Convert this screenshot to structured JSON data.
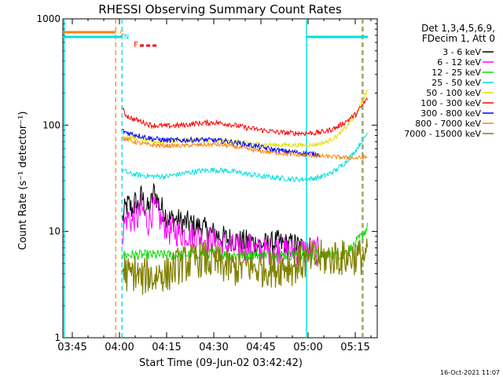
{
  "chart_data": {
    "type": "line",
    "title": "RHESSI Observing Summary Count Rates",
    "xlabel": "Start Time (09-Jun-02 03:42:42)",
    "ylabel": "Count Rate (s⁻¹ detector⁻¹)",
    "footer": "16-Oct-2021 11:07",
    "y_scale": "log",
    "ylim": [
      1,
      1000
    ],
    "xlim_minutes": [
      -18,
      82
    ],
    "x_tick_labels": [
      "03:45",
      "04:00",
      "04:15",
      "04:30",
      "04:45",
      "05:00",
      "05:15"
    ],
    "x_tick_minutes": [
      -15,
      0,
      15,
      30,
      45,
      60,
      75
    ],
    "y_tick_labels": [
      "1",
      "10",
      "100",
      "1000"
    ],
    "y_tick_values": [
      1,
      10,
      100,
      1000
    ],
    "legend": {
      "placement": "top-right",
      "header_lines": [
        "Det 1,3,4,5,6,9,",
        "FDecim 1, Att 0"
      ]
    },
    "flags": {
      "markers": [
        "S",
        "N",
        "F"
      ],
      "colors": [
        "#ff8000",
        "#00e0e0",
        "#ff0000"
      ]
    },
    "series": [
      {
        "name": "3 - 6 keV",
        "color": "#000000",
        "points": [
          [
            1,
            13
          ],
          [
            2,
            17
          ],
          [
            3,
            18
          ],
          [
            4,
            16
          ],
          [
            5,
            19
          ],
          [
            6,
            17
          ],
          [
            7,
            22
          ],
          [
            8,
            18
          ],
          [
            9,
            16
          ],
          [
            10,
            18
          ],
          [
            11,
            24
          ],
          [
            12,
            20
          ],
          [
            13,
            17
          ],
          [
            14,
            16
          ],
          [
            15,
            14
          ],
          [
            16,
            13
          ],
          [
            18,
            13
          ],
          [
            20,
            12
          ],
          [
            22,
            12
          ],
          [
            24,
            11
          ],
          [
            26,
            11
          ],
          [
            28,
            10
          ],
          [
            30,
            9.5
          ],
          [
            32,
            9
          ],
          [
            34,
            8.5
          ],
          [
            36,
            8.5
          ],
          [
            38,
            8
          ],
          [
            40,
            8
          ],
          [
            42,
            8
          ],
          [
            44,
            7.5
          ],
          [
            46,
            7.5
          ],
          [
            48,
            7.5
          ],
          [
            50,
            8
          ],
          [
            52,
            7.5
          ],
          [
            54,
            7.5
          ],
          [
            56,
            7.5
          ],
          [
            58,
            7
          ],
          [
            60,
            7
          ],
          [
            61,
            7
          ]
        ]
      },
      {
        "name": "6 - 12 keV",
        "color": "#ff00ff",
        "points": [
          [
            1,
            10
          ],
          [
            2,
            13
          ],
          [
            3,
            14
          ],
          [
            4,
            12
          ],
          [
            5,
            14
          ],
          [
            6,
            13
          ],
          [
            7,
            17
          ],
          [
            8,
            14
          ],
          [
            9,
            12
          ],
          [
            10,
            14
          ],
          [
            11,
            17
          ],
          [
            12,
            15
          ],
          [
            13,
            13
          ],
          [
            14,
            12
          ],
          [
            15,
            11
          ],
          [
            16,
            10
          ],
          [
            18,
            10
          ],
          [
            20,
            9.5
          ],
          [
            22,
            9.5
          ],
          [
            24,
            9
          ],
          [
            26,
            9
          ],
          [
            28,
            8.5
          ],
          [
            30,
            8
          ],
          [
            32,
            7.5
          ],
          [
            34,
            7.5
          ],
          [
            36,
            7
          ],
          [
            38,
            7
          ],
          [
            40,
            7
          ],
          [
            42,
            7
          ],
          [
            44,
            6.5
          ],
          [
            46,
            6.5
          ],
          [
            48,
            6.5
          ],
          [
            50,
            7
          ],
          [
            52,
            6.5
          ],
          [
            54,
            6.5
          ],
          [
            56,
            6.5
          ],
          [
            58,
            6.5
          ],
          [
            60,
            6.5
          ],
          [
            62,
            6.5
          ],
          [
            64,
            6.5
          ]
        ]
      },
      {
        "name": "12 - 25 keV",
        "color": "#00e000",
        "points": [
          [
            1,
            6
          ],
          [
            5,
            6
          ],
          [
            10,
            6
          ],
          [
            15,
            6
          ],
          [
            20,
            6
          ],
          [
            25,
            6.2
          ],
          [
            30,
            6.2
          ],
          [
            35,
            6
          ],
          [
            40,
            6
          ],
          [
            45,
            6
          ],
          [
            50,
            6
          ],
          [
            55,
            6
          ],
          [
            60,
            6
          ],
          [
            65,
            6
          ],
          [
            70,
            6
          ],
          [
            74,
            7
          ],
          [
            77,
            9
          ],
          [
            79,
            11
          ]
        ]
      },
      {
        "name": "25 - 50 keV",
        "color": "#00e0e0",
        "points": [
          [
            1,
            38
          ],
          [
            3,
            35
          ],
          [
            6,
            34
          ],
          [
            10,
            33
          ],
          [
            15,
            33
          ],
          [
            20,
            35
          ],
          [
            25,
            37
          ],
          [
            30,
            38
          ],
          [
            35,
            37
          ],
          [
            40,
            35
          ],
          [
            45,
            33
          ],
          [
            50,
            32
          ],
          [
            55,
            31
          ],
          [
            60,
            31
          ],
          [
            63,
            32
          ],
          [
            66,
            34
          ],
          [
            69,
            38
          ],
          [
            72,
            45
          ],
          [
            75,
            57
          ],
          [
            77,
            70
          ],
          [
            79,
            85
          ]
        ]
      },
      {
        "name": "50 - 100 keV",
        "color": "#e0e000",
        "points": [
          [
            1,
            80
          ],
          [
            3,
            77
          ],
          [
            6,
            74
          ],
          [
            10,
            70
          ],
          [
            15,
            70
          ],
          [
            20,
            72
          ],
          [
            25,
            73
          ],
          [
            30,
            72
          ],
          [
            35,
            71
          ],
          [
            40,
            68
          ],
          [
            45,
            66
          ],
          [
            50,
            65
          ],
          [
            55,
            65
          ],
          [
            60,
            65
          ],
          [
            63,
            66
          ],
          [
            66,
            70
          ],
          [
            69,
            78
          ],
          [
            72,
            95
          ],
          [
            75,
            120
          ],
          [
            77,
            160
          ],
          [
            79,
            220
          ]
        ]
      },
      {
        "name": "100 - 300 keV",
        "color": "#ff0000",
        "points": [
          [
            1,
            140
          ],
          [
            2,
            125
          ],
          [
            4,
            115
          ],
          [
            7,
            108
          ],
          [
            10,
            100
          ],
          [
            15,
            98
          ],
          [
            20,
            100
          ],
          [
            25,
            104
          ],
          [
            30,
            106
          ],
          [
            35,
            102
          ],
          [
            40,
            95
          ],
          [
            45,
            90
          ],
          [
            50,
            86
          ],
          [
            55,
            84
          ],
          [
            60,
            84
          ],
          [
            63,
            85
          ],
          [
            66,
            88
          ],
          [
            69,
            95
          ],
          [
            72,
            108
          ],
          [
            75,
            125
          ],
          [
            77,
            150
          ],
          [
            79,
            180
          ]
        ]
      },
      {
        "name": "300 - 800 keV",
        "color": "#0000ff",
        "points": [
          [
            1,
            88
          ],
          [
            3,
            84
          ],
          [
            6,
            80
          ],
          [
            10,
            75
          ],
          [
            15,
            72
          ],
          [
            20,
            72
          ],
          [
            25,
            73
          ],
          [
            30,
            72
          ],
          [
            35,
            70
          ],
          [
            40,
            66
          ],
          [
            45,
            62
          ],
          [
            50,
            58
          ],
          [
            55,
            56
          ],
          [
            60,
            54
          ],
          [
            64,
            53
          ]
        ]
      },
      {
        "name": "800 - 7000 keV",
        "color": "#ff8000",
        "points": [
          [
            1,
            75
          ],
          [
            3,
            72
          ],
          [
            6,
            68
          ],
          [
            10,
            65
          ],
          [
            15,
            64
          ],
          [
            20,
            64
          ],
          [
            25,
            65
          ],
          [
            30,
            66
          ],
          [
            35,
            64
          ],
          [
            40,
            60
          ],
          [
            45,
            57
          ],
          [
            50,
            55
          ],
          [
            55,
            53
          ],
          [
            60,
            52
          ],
          [
            65,
            51
          ],
          [
            70,
            50
          ],
          [
            75,
            49
          ],
          [
            79,
            50
          ]
        ]
      },
      {
        "name": "7000 - 15000 keV",
        "color": "#808000",
        "points": [
          [
            1,
            4.5
          ],
          [
            3,
            3.8
          ],
          [
            5,
            4.2
          ],
          [
            7,
            3.5
          ],
          [
            9,
            4
          ],
          [
            11,
            3.6
          ],
          [
            13,
            4.2
          ],
          [
            15,
            3.8
          ],
          [
            17,
            4.5
          ],
          [
            19,
            4.8
          ],
          [
            21,
            5
          ],
          [
            23,
            5.2
          ],
          [
            25,
            5.5
          ],
          [
            27,
            5.5
          ],
          [
            29,
            5.2
          ],
          [
            31,
            5
          ],
          [
            33,
            4.8
          ],
          [
            35,
            4.6
          ],
          [
            37,
            4.5
          ],
          [
            39,
            4.6
          ],
          [
            41,
            4.8
          ],
          [
            43,
            4.5
          ],
          [
            45,
            4.4
          ],
          [
            47,
            4.6
          ],
          [
            49,
            4.4
          ],
          [
            51,
            4.6
          ],
          [
            53,
            4.8
          ],
          [
            55,
            4.6
          ],
          [
            57,
            5
          ],
          [
            59,
            5.2
          ],
          [
            61,
            5.5
          ],
          [
            63,
            5.5
          ],
          [
            65,
            5.6
          ],
          [
            67,
            5.6
          ],
          [
            69,
            5.8
          ],
          [
            71,
            5.6
          ],
          [
            73,
            5.8
          ],
          [
            75,
            5.8
          ],
          [
            77,
            5.8
          ],
          [
            79,
            5.8
          ]
        ]
      }
    ]
  }
}
